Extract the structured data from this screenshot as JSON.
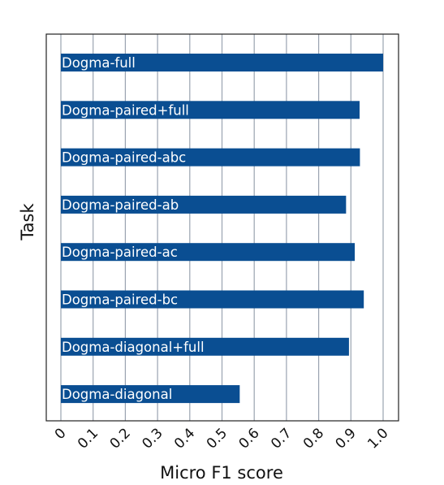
{
  "chart_data": {
    "type": "bar",
    "orientation": "horizontal",
    "categories": [
      "Dogma-full",
      "Dogma-paired+full",
      "Dogma-paired-abc",
      "Dogma-paired-ab",
      "Dogma-paired-ac",
      "Dogma-paired-bc",
      "Dogma-diagonal+full",
      "Dogma-diagonal"
    ],
    "values": [
      1.0,
      0.927,
      0.928,
      0.885,
      0.912,
      0.94,
      0.894,
      0.555
    ],
    "xlabel": "Micro F1 score",
    "ylabel": "Task",
    "xlim": [
      0,
      1.0
    ],
    "xticks": [
      "0",
      "0.1",
      "0.2",
      "0.3",
      "0.4",
      "0.5",
      "0.6",
      "0.7",
      "0.8",
      "0.9",
      "1.0"
    ],
    "grid": "vertical",
    "bar_labels_inside": true,
    "colors": {
      "bar": "#0a4e92",
      "grid": "#9aa3b0",
      "frame": "#222222",
      "label_text": "#ffffff"
    }
  }
}
